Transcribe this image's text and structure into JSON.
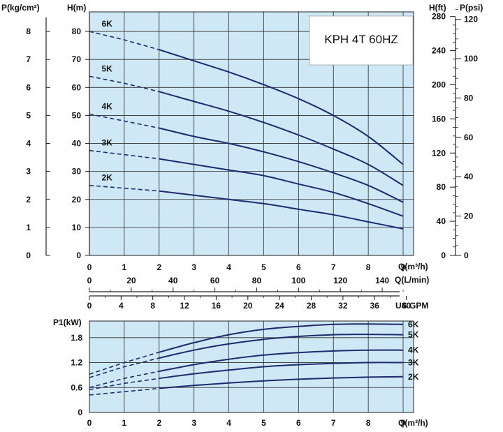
{
  "chart_data": [
    {
      "type": "line",
      "title": "KPH 4T 60HZ",
      "x_label": "Q(m³/h)",
      "x_ticks": [
        "0",
        "1",
        "2",
        "3",
        "4",
        "5",
        "6",
        "7",
        "8",
        "9"
      ],
      "xlim": [
        0,
        9.3
      ],
      "secondary_x_axes": [
        {
          "label": "Q(L/min)",
          "ticks": [
            "0",
            "20",
            "40",
            "60",
            "80",
            "100",
            "120",
            "140"
          ],
          "per_m3h": 16.6667
        },
        {
          "label": "US GPM",
          "ticks": [
            "0",
            "4",
            "8",
            "12",
            "16",
            "20",
            "24",
            "28",
            "32",
            "36",
            "40"
          ],
          "per_m3h": 4.4
        }
      ],
      "y_label": "H(m)",
      "y_ticks": [
        "0",
        "10",
        "20",
        "30",
        "40",
        "50",
        "60",
        "70",
        "80"
      ],
      "ylim": [
        0,
        87
      ],
      "secondary_y_axes": [
        {
          "label": "P(kg/cm²)",
          "side": "left",
          "ticks": [
            "0",
            "1",
            "2",
            "3",
            "4",
            "5",
            "6",
            "7",
            "8"
          ]
        },
        {
          "label": "H(ft)",
          "side": "right",
          "ticks": [
            "0",
            "40",
            "80",
            "120",
            "160",
            "200",
            "240",
            "280"
          ]
        },
        {
          "label": "P(psi)",
          "side": "right",
          "ticks": [
            "0",
            "20",
            "40",
            "60",
            "80",
            "100",
            "120"
          ]
        }
      ],
      "grid": true,
      "dashed_until_x": 2,
      "series": [
        {
          "name": "6K",
          "x": [
            0,
            1,
            2,
            3,
            4,
            5,
            6,
            7,
            8,
            9
          ],
          "y": [
            80,
            77,
            73.5,
            69.5,
            65.5,
            61,
            56,
            50,
            42.5,
            32.5
          ]
        },
        {
          "name": "5K",
          "x": [
            0,
            1,
            2,
            3,
            4,
            5,
            6,
            7,
            8,
            9
          ],
          "y": [
            64,
            61.5,
            58.5,
            55,
            51.5,
            47.5,
            43,
            38,
            32.5,
            25
          ]
        },
        {
          "name": "4K",
          "x": [
            0,
            1,
            2,
            3,
            4,
            5,
            6,
            7,
            8,
            9
          ],
          "y": [
            50.5,
            48,
            45.5,
            42.5,
            40,
            37,
            33.5,
            29.5,
            25,
            19
          ]
        },
        {
          "name": "3K",
          "x": [
            0,
            1,
            2,
            3,
            4,
            5,
            6,
            7,
            8,
            9
          ],
          "y": [
            37.5,
            36,
            34.5,
            32.5,
            30.5,
            28.5,
            25.5,
            22.5,
            18.5,
            14
          ]
        },
        {
          "name": "2K",
          "x": [
            0,
            1,
            2,
            3,
            4,
            5,
            6,
            7,
            8,
            9
          ],
          "y": [
            25,
            24,
            23,
            21.5,
            20,
            18.5,
            16.5,
            14.5,
            12,
            9.5
          ]
        }
      ]
    },
    {
      "type": "line",
      "y_label": "P1(kW)",
      "y_ticks": [
        "0",
        "0.6",
        "1.2",
        "1.8"
      ],
      "ylim": [
        0,
        2.2
      ],
      "x_label": "Q(m³/h)",
      "x_ticks": [
        "0",
        "1",
        "2",
        "3",
        "4",
        "5",
        "6",
        "7",
        "8",
        "9"
      ],
      "xlim": [
        0,
        9.3
      ],
      "grid": true,
      "dashed_until_x": 2,
      "series": [
        {
          "name": "6K",
          "x": [
            0,
            1,
            2,
            3,
            4,
            5,
            6,
            7,
            8,
            9
          ],
          "y": [
            0.92,
            1.2,
            1.45,
            1.68,
            1.87,
            2.0,
            2.07,
            2.12,
            2.13,
            2.12
          ]
        },
        {
          "name": "5K",
          "x": [
            0,
            1,
            2,
            3,
            4,
            5,
            6,
            7,
            8,
            9
          ],
          "y": [
            0.84,
            1.1,
            1.31,
            1.5,
            1.65,
            1.76,
            1.83,
            1.87,
            1.88,
            1.87
          ]
        },
        {
          "name": "4K",
          "x": [
            0,
            1,
            2,
            3,
            4,
            5,
            6,
            7,
            8,
            9
          ],
          "y": [
            0.6,
            0.82,
            0.99,
            1.15,
            1.28,
            1.38,
            1.44,
            1.48,
            1.5,
            1.5
          ]
        },
        {
          "name": "3K",
          "x": [
            0,
            1,
            2,
            3,
            4,
            5,
            6,
            7,
            8,
            9
          ],
          "y": [
            0.55,
            0.7,
            0.82,
            0.93,
            1.02,
            1.1,
            1.15,
            1.18,
            1.2,
            1.2
          ]
        },
        {
          "name": "2K",
          "x": [
            0,
            1,
            2,
            3,
            4,
            5,
            6,
            7,
            8,
            9
          ],
          "y": [
            0.42,
            0.5,
            0.58,
            0.65,
            0.71,
            0.76,
            0.8,
            0.83,
            0.85,
            0.86
          ]
        }
      ]
    }
  ],
  "colors": {
    "plot_bg": "#cfe8f5",
    "curve": "#1d2a6e",
    "grid": "#2b2b2b"
  }
}
